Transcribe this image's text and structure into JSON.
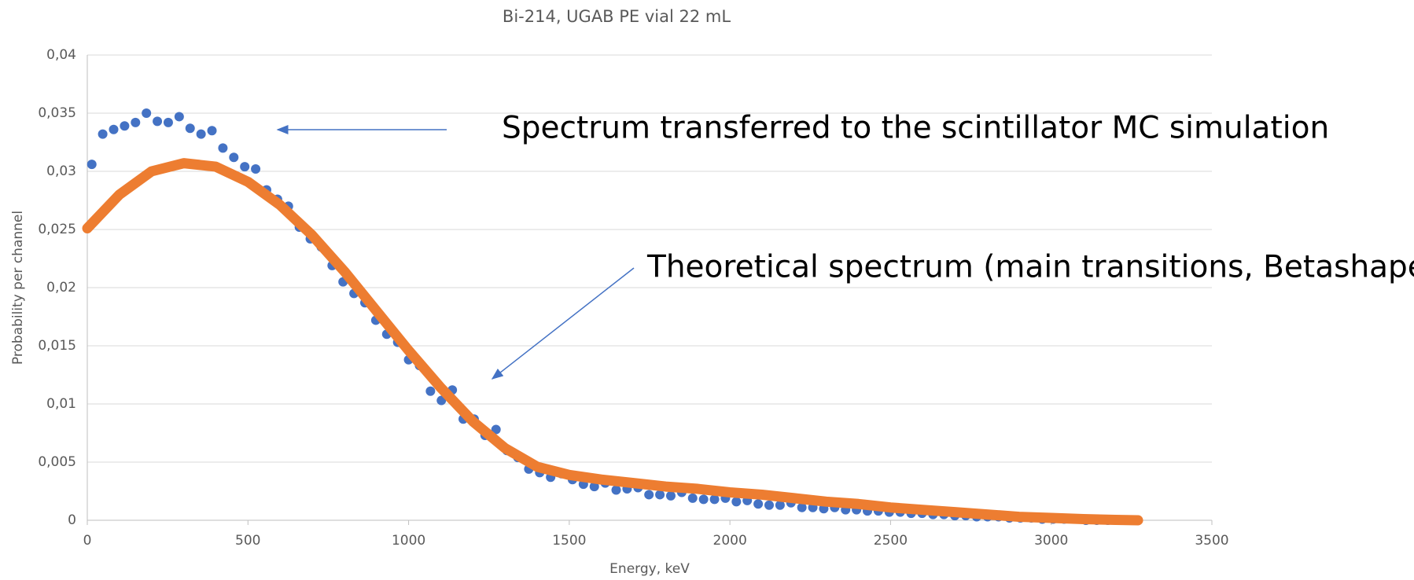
{
  "chart_data": {
    "type": "scatter",
    "title": "Bi-214, UGAB PE vial 22 mL",
    "xlabel": "Energy, keV",
    "ylabel": "Probability per channel",
    "xlim": [
      0,
      3500
    ],
    "xticks": [
      0,
      500,
      1000,
      1500,
      2000,
      2500,
      3000,
      3500
    ],
    "ylim": [
      0,
      0.04
    ],
    "yticks": [
      0,
      {
        "value": 0.005,
        "label": "0,005"
      },
      {
        "value": 0.01,
        "label": "0,01"
      },
      {
        "value": 0.015,
        "label": "0,015"
      },
      {
        "value": 0.02,
        "label": "0,02"
      },
      {
        "value": 0.025,
        "label": "0,025"
      },
      {
        "value": 0.03,
        "label": "0,03"
      },
      {
        "value": 0.035,
        "label": "0,035"
      },
      {
        "value": 0.04,
        "label": "0,04"
      }
    ],
    "grid": true,
    "series": [
      {
        "style": "markers",
        "color": "#4472c4",
        "x": [
          14,
          48,
          82,
          116,
          150,
          184,
          218,
          252,
          286,
          320,
          354,
          388,
          422,
          456,
          490,
          524,
          558,
          592,
          626,
          660,
          694,
          728,
          762,
          796,
          830,
          864,
          898,
          932,
          966,
          1000,
          1034,
          1068,
          1102,
          1136,
          1170,
          1204,
          1238,
          1272,
          1306,
          1340,
          1374,
          1408,
          1442,
          1476,
          1510,
          1544,
          1578,
          1612,
          1646,
          1680,
          1714,
          1748,
          1782,
          1816,
          1850,
          1884,
          1918,
          1952,
          1986,
          2020,
          2054,
          2088,
          2122,
          2156,
          2190,
          2224,
          2258,
          2292,
          2326,
          2360,
          2394,
          2428,
          2462,
          2496,
          2530,
          2564,
          2598,
          2632,
          2666,
          2700,
          2734,
          2768,
          2802,
          2836,
          2870,
          2904,
          2938,
          2972,
          3006,
          3040,
          3074,
          3108,
          3142,
          3176,
          3210,
          3244,
          3270
        ],
        "values": [
          0.0306,
          0.0332,
          0.0336,
          0.0339,
          0.0342,
          0.035,
          0.0343,
          0.0342,
          0.0347,
          0.0337,
          0.0332,
          0.0335,
          0.032,
          0.0312,
          0.0304,
          0.0302,
          0.0284,
          0.0276,
          0.027,
          0.0252,
          0.0242,
          0.0235,
          0.0219,
          0.0205,
          0.0195,
          0.0187,
          0.0172,
          0.016,
          0.0153,
          0.0138,
          0.0133,
          0.0111,
          0.0103,
          0.0112,
          0.0087,
          0.0087,
          0.0073,
          0.0078,
          0.006,
          0.0054,
          0.0044,
          0.0041,
          0.0037,
          0.004,
          0.0035,
          0.0031,
          0.0029,
          0.0032,
          0.0026,
          0.0027,
          0.0028,
          0.0022,
          0.0022,
          0.0021,
          0.0024,
          0.0019,
          0.0018,
          0.0018,
          0.0019,
          0.0016,
          0.0017,
          0.0014,
          0.0013,
          0.0013,
          0.0015,
          0.0011,
          0.0011,
          0.001,
          0.0011,
          0.0009,
          0.0009,
          0.0008,
          0.0008,
          0.0007,
          0.0007,
          0.0006,
          0.0006,
          0.0005,
          0.0005,
          0.0004,
          0.0004,
          0.0003,
          0.0003,
          0.0003,
          0.0002,
          0.0002,
          0.0002,
          0.0001,
          0.0001,
          0.0001,
          0.0001,
          0,
          0,
          0,
          0,
          0,
          0
        ]
      },
      {
        "style": "line",
        "color": "#ed7d31",
        "x": [
          0,
          100,
          200,
          300,
          400,
          500,
          600,
          700,
          800,
          900,
          1000,
          1100,
          1200,
          1300,
          1400,
          1500,
          1600,
          1700,
          1800,
          1900,
          2000,
          2100,
          2200,
          2300,
          2400,
          2500,
          2600,
          2700,
          2800,
          2900,
          3000,
          3100,
          3200,
          3270
        ],
        "values": [
          0.0251,
          0.028,
          0.03,
          0.0307,
          0.0304,
          0.0291,
          0.0271,
          0.0245,
          0.0214,
          0.018,
          0.0146,
          0.0114,
          0.0085,
          0.0062,
          0.0046,
          0.0039,
          0.0035,
          0.0032,
          0.0029,
          0.0027,
          0.0024,
          0.0022,
          0.0019,
          0.0016,
          0.0014,
          0.0011,
          0.0009,
          0.0007,
          0.0005,
          0.0003,
          0.0002,
          0.0001,
          3e-05,
          0
        ]
      }
    ],
    "annotations": [
      "Spectrum transferred to the scintillator MC simulation",
      "Theoretical spectrum (main transitions, Betashape)"
    ]
  }
}
